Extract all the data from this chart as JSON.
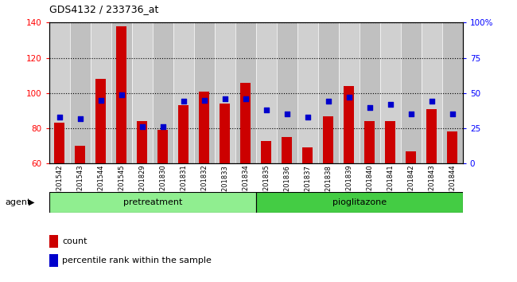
{
  "title": "GDS4132 / 233736_at",
  "samples": [
    "GSM201542",
    "GSM201543",
    "GSM201544",
    "GSM201545",
    "GSM201829",
    "GSM201830",
    "GSM201831",
    "GSM201832",
    "GSM201833",
    "GSM201834",
    "GSM201835",
    "GSM201836",
    "GSM201837",
    "GSM201838",
    "GSM201839",
    "GSM201840",
    "GSM201841",
    "GSM201842",
    "GSM201843",
    "GSM201844"
  ],
  "counts": [
    83,
    70,
    108,
    138,
    84,
    79,
    93,
    101,
    94,
    106,
    73,
    75,
    69,
    87,
    104,
    84,
    84,
    67,
    91,
    78
  ],
  "percentiles": [
    33,
    32,
    45,
    49,
    26,
    26,
    44,
    45,
    46,
    46,
    38,
    35,
    33,
    44,
    47,
    40,
    42,
    35,
    44,
    35
  ],
  "pretreatment_count": 10,
  "pioglitazone_count": 10,
  "bar_color": "#cc0000",
  "dot_color": "#0000cc",
  "ylim_left": [
    60,
    140
  ],
  "ylim_right": [
    0,
    100
  ],
  "yticks_left": [
    60,
    80,
    100,
    120,
    140
  ],
  "yticks_right": [
    0,
    25,
    50,
    75,
    100
  ],
  "ytick_labels_right": [
    "0",
    "25",
    "50",
    "75",
    "100%"
  ],
  "pretreatment_color": "#90ee90",
  "pioglitazone_color": "#44cc44",
  "agent_label": "agent",
  "pretreatment_label": "pretreatment",
  "pioglitazone_label": "pioglitazone",
  "legend_count_label": "count",
  "legend_pct_label": "percentile rank within the sample",
  "bar_width": 0.5,
  "plot_bg_color": "#c8c8c8",
  "col_bg_even": "#d0d0d0",
  "col_bg_odd": "#c0c0c0"
}
